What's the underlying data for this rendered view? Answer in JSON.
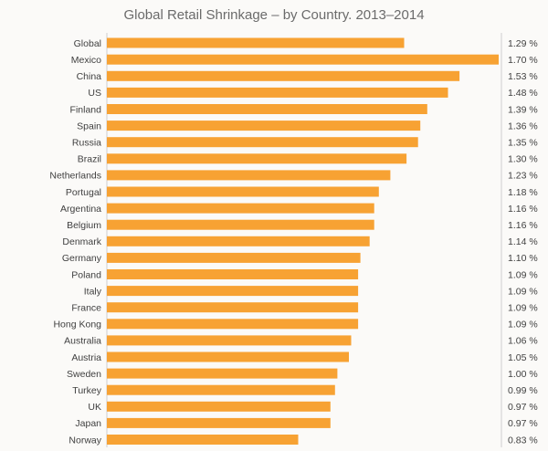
{
  "chart_data": {
    "type": "bar",
    "orientation": "horizontal",
    "title": "Global Retail Shrinkage – by Country. 2013–2014",
    "categories": [
      "Global",
      "Mexico",
      "China",
      "US",
      "Finland",
      "Spain",
      "Russia",
      "Brazil",
      "Netherlands",
      "Portugal",
      "Argentina",
      "Belgium",
      "Denmark",
      "Germany",
      "Poland",
      "Italy",
      "France",
      "Hong Kong",
      "Australia",
      "Austria",
      "Sweden",
      "Turkey",
      "UK",
      "Japan",
      "Norway"
    ],
    "values": [
      1.29,
      1.7,
      1.53,
      1.48,
      1.39,
      1.36,
      1.35,
      1.3,
      1.23,
      1.18,
      1.16,
      1.16,
      1.14,
      1.1,
      1.09,
      1.09,
      1.09,
      1.09,
      1.06,
      1.05,
      1.0,
      0.99,
      0.97,
      0.97,
      0.83
    ],
    "value_labels": [
      "1.29 %",
      "1.70 %",
      "1.53 %",
      "1.48 %",
      "1.39 %",
      "1.36 %",
      "1.35 %",
      "1.30 %",
      "1.23 %",
      "1.18 %",
      "1.16 %",
      "1.16 %",
      "1.14 %",
      "1.10 %",
      "1.09 %",
      "1.09 %",
      "1.09 %",
      "1.09 %",
      "1.06 %",
      "1.05 %",
      "1.00 %",
      "0.99 %",
      "0.97 %",
      "0.97 %",
      "0.83 %"
    ],
    "xlim": [
      0,
      1.7
    ],
    "bar_color": "#f7a233",
    "grid": false,
    "legend": false
  }
}
